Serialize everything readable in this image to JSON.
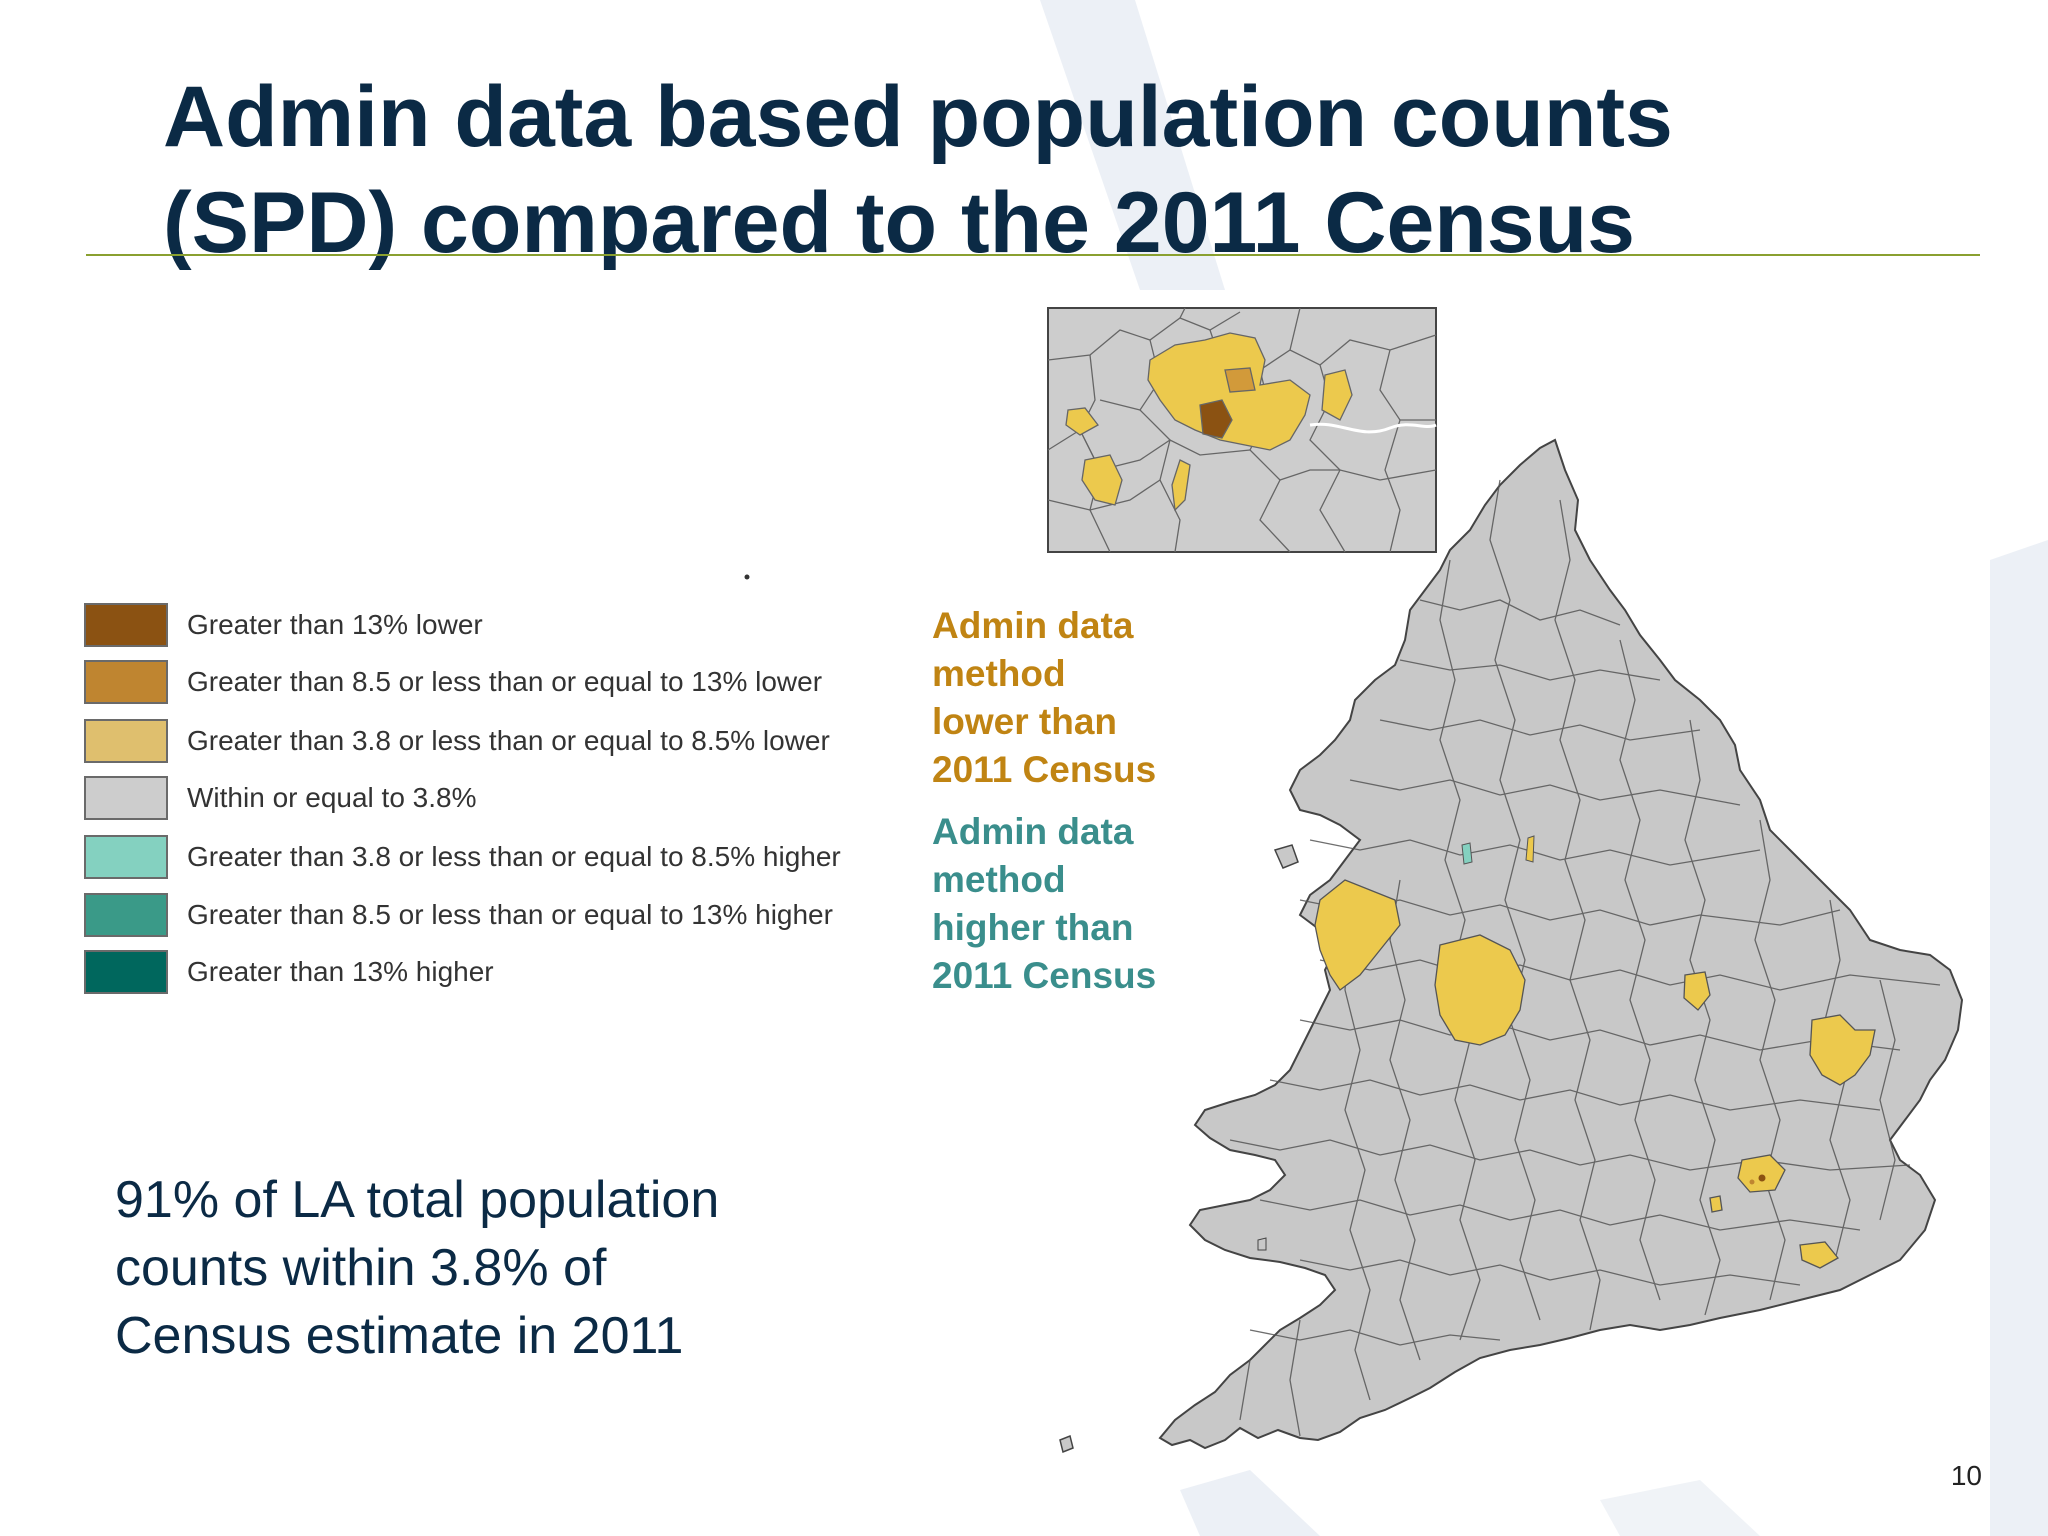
{
  "slide": {
    "title": "Admin data based population counts (SPD) compared to the 2011 Census",
    "page_number": "10"
  },
  "legend": {
    "items": [
      {
        "label": "Greater than 13% lower",
        "color": "#8b5212"
      },
      {
        "label": "Greater than 8.5 or less than or equal to 13% lower",
        "color": "#bf8530"
      },
      {
        "label": "Greater than 3.8 or less than or equal to 8.5% lower",
        "color": "#dfbf6e"
      },
      {
        "label": "Within or equal to 3.8%",
        "color": "#cdcdcd"
      },
      {
        "label": "Greater than 3.8 or less than or equal to 8.5% higher",
        "color": "#84d1c0"
      },
      {
        "label": "Greater than 8.5 or less than or equal to 13% higher",
        "color": "#3a9a88"
      },
      {
        "label": "Greater than 13% higher",
        "color": "#00675d"
      }
    ]
  },
  "annotations": {
    "lower": {
      "lines": [
        "Admin data",
        "method",
        "lower than",
        "2011 Census"
      ],
      "color": "#c08413"
    },
    "higher": {
      "lines": [
        "Admin data",
        "method",
        "higher than",
        "2011 Census"
      ],
      "color": "#3a8e8c"
    }
  },
  "statement": {
    "lines": [
      "91% of LA total population",
      "counts within 3.8% of",
      "Census estimate in 2011"
    ]
  },
  "map": {
    "base_color": "#c8c8c8",
    "highlight_color": "#ecc94d",
    "border_color": "#555555",
    "inset_region": "London",
    "main_region": "England and Wales"
  }
}
